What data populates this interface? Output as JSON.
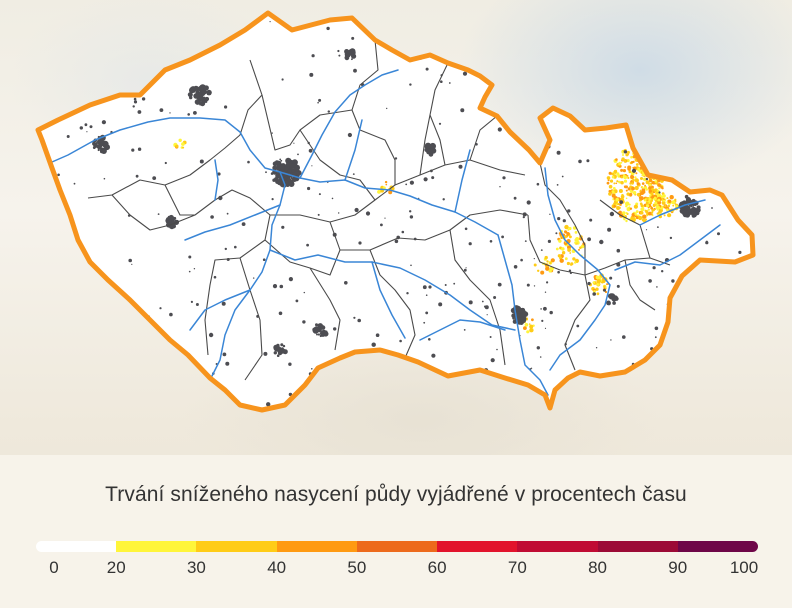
{
  "legend": {
    "title": "Trvání sníženého nasycení půdy vyjádřené v procentech času",
    "scale_colors": [
      "#ffffff",
      "#fff53a",
      "#ffcc17",
      "#ff9a12",
      "#ed6a1c",
      "#e2132c",
      "#c00b33",
      "#9c0a36",
      "#6e0648"
    ],
    "ticks": [
      "0",
      "20",
      "30",
      "40",
      "50",
      "60",
      "70",
      "80",
      "90",
      "100"
    ]
  },
  "map": {
    "border_color": "#f7941d",
    "river_color": "#3a86d6",
    "region_line_color": "#4a4a4a",
    "urban_color": "#4d4d52",
    "drought_colors": [
      "#fff53a",
      "#ffcc17",
      "#ff9a12"
    ]
  }
}
